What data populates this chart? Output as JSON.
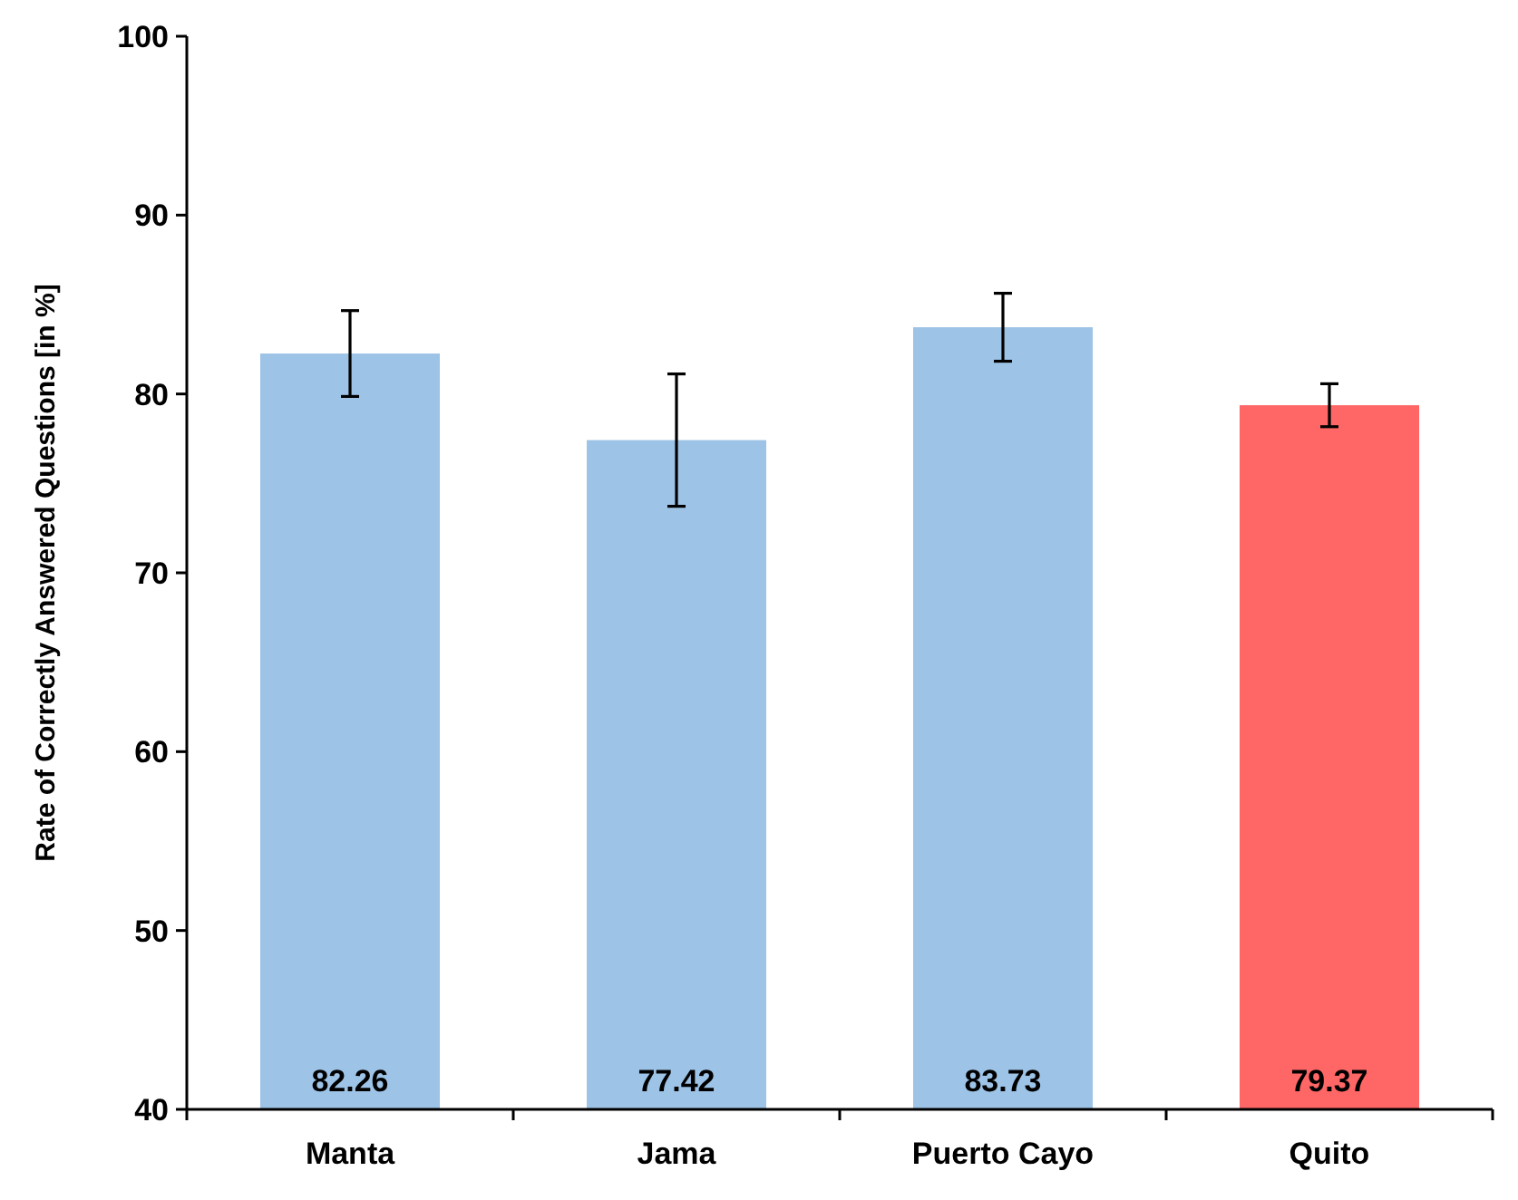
{
  "chart_data": {
    "type": "bar",
    "ylabel": "Rate of Correctly Answered Questions [in %]",
    "categories": [
      "Manta",
      "Jama",
      "Puerto Cayo",
      "Quito"
    ],
    "values": [
      82.26,
      77.42,
      83.73,
      79.37
    ],
    "colors": [
      "#9dc3e6",
      "#9dc3e6",
      "#9dc3e6",
      "#ff6666"
    ],
    "errors": [
      2.4,
      3.7,
      1.9,
      1.2
    ],
    "ylim": [
      40,
      100
    ],
    "yticks": [
      40,
      50,
      60,
      70,
      80,
      90,
      100
    ],
    "value_labels": [
      "82.26",
      "77.42",
      "83.73",
      "79.37"
    ],
    "grid": false
  }
}
